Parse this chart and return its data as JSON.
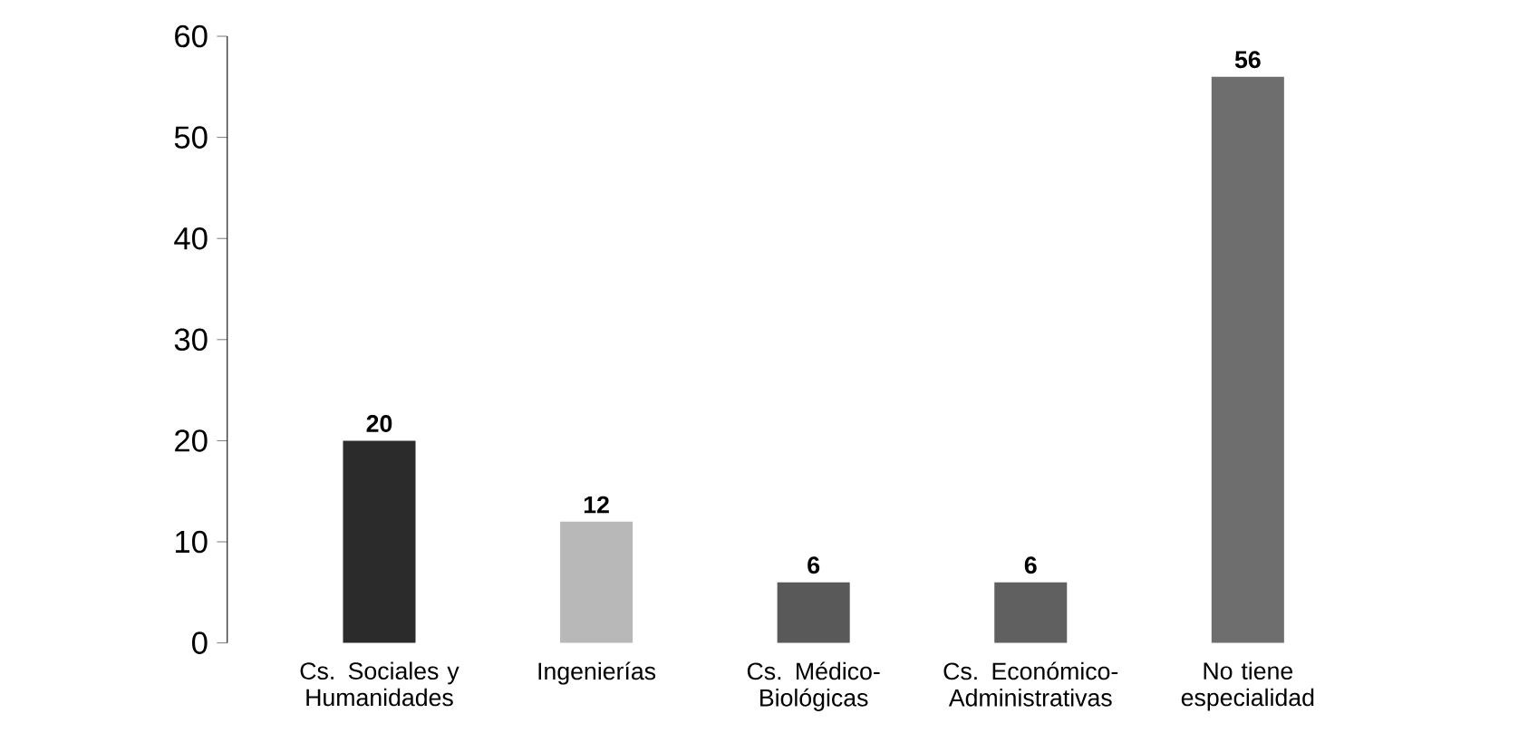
{
  "chart_data": {
    "type": "bar",
    "categories": [
      "Cs. Sociales y Humanidades",
      "Ingenierías",
      "Cs. Médico-Biológicas",
      "Cs. Económico-Administrativas",
      "No tiene especialidad"
    ],
    "values": [
      20,
      12,
      6,
      6,
      56
    ],
    "colors": [
      "#2b2b2b",
      "#b8b8b8",
      "#595959",
      "#606060",
      "#6e6e6e"
    ],
    "ylim": [
      0,
      60
    ],
    "yticks": [
      0,
      10,
      20,
      30,
      40,
      50,
      60
    ],
    "data_labels": true,
    "grid": false
  }
}
